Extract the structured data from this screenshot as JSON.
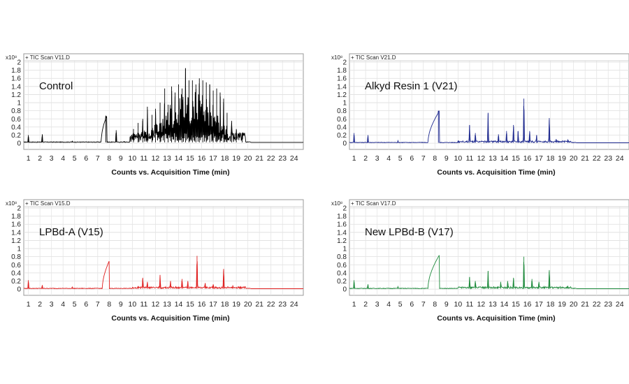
{
  "chart_data": [
    {
      "type": "line",
      "file_label": "+ TIC Scan V11.D",
      "exponent_label": "x10⁸",
      "sample_label": "Control",
      "xlabel": "Counts vs. Acquisition Time (min)",
      "color": "#000000",
      "xlim": [
        0.6,
        24.8
      ],
      "ylim": [
        -0.05,
        2.0
      ],
      "xticks": [
        "1",
        "2",
        "3",
        "4",
        "5",
        "6",
        "7",
        "8",
        "9",
        "10",
        "11",
        "12",
        "13",
        "14",
        "15",
        "16",
        "17",
        "18",
        "19",
        "20",
        "21",
        "22",
        "23",
        "24"
      ],
      "yticks": [
        "0",
        "0.2",
        "0.4",
        "0.6",
        "0.8",
        "1",
        "1.2",
        "1.4",
        "1.6",
        "1.8",
        "2"
      ],
      "grid": true,
      "peaks": [
        [
          1.0,
          0.2
        ],
        [
          2.2,
          0.22
        ],
        [
          4.8,
          0.05
        ],
        [
          7.7,
          0.68
        ],
        [
          8.6,
          0.32
        ],
        [
          9.3,
          0.05
        ],
        [
          10.1,
          0.35
        ],
        [
          10.5,
          0.5
        ],
        [
          10.9,
          0.6
        ],
        [
          11.3,
          0.9
        ],
        [
          11.7,
          0.7
        ],
        [
          12.0,
          0.85
        ],
        [
          12.4,
          1.0
        ],
        [
          12.8,
          1.35
        ],
        [
          13.1,
          0.95
        ],
        [
          13.4,
          1.4
        ],
        [
          13.7,
          1.25
        ],
        [
          14.0,
          1.45
        ],
        [
          14.3,
          1.35
        ],
        [
          14.6,
          1.85
        ],
        [
          14.9,
          1.55
        ],
        [
          15.2,
          1.55
        ],
        [
          15.5,
          1.45
        ],
        [
          15.8,
          1.6
        ],
        [
          16.1,
          1.55
        ],
        [
          16.4,
          1.5
        ],
        [
          16.7,
          1.45
        ],
        [
          17.0,
          1.3
        ],
        [
          17.3,
          1.35
        ],
        [
          17.6,
          1.25
        ],
        [
          17.9,
          1.1
        ],
        [
          18.2,
          0.75
        ],
        [
          18.6,
          0.55
        ],
        [
          19.0,
          0.35
        ],
        [
          19.5,
          0.25
        ]
      ],
      "baseline": 0.02
    },
    {
      "type": "line",
      "file_label": "+ TIC Scan V21.D",
      "exponent_label": "x10⁸",
      "sample_label": "Alkyd Resin 1 (V21)",
      "xlabel": "Counts vs. Acquisition Time (min)",
      "color": "#1f2a8f",
      "xlim": [
        0.6,
        24.8
      ],
      "ylim": [
        -0.05,
        2.0
      ],
      "xticks": [
        "1",
        "2",
        "3",
        "4",
        "5",
        "6",
        "7",
        "8",
        "9",
        "10",
        "11",
        "12",
        "13",
        "14",
        "15",
        "16",
        "17",
        "18",
        "19",
        "20",
        "21",
        "22",
        "23",
        "24"
      ],
      "yticks": [
        "0",
        "0.2",
        "0.4",
        "0.6",
        "0.8",
        "1",
        "1.2",
        "1.4",
        "1.6",
        "1.8",
        "2"
      ],
      "grid": true,
      "peaks": [
        [
          1.0,
          0.25
        ],
        [
          2.2,
          0.2
        ],
        [
          4.8,
          0.06
        ],
        [
          8.3,
          0.8
        ],
        [
          10.0,
          0.05
        ],
        [
          11.0,
          0.45
        ],
        [
          11.5,
          0.25
        ],
        [
          12.6,
          0.75
        ],
        [
          13.5,
          0.22
        ],
        [
          14.2,
          0.3
        ],
        [
          14.8,
          0.45
        ],
        [
          15.2,
          0.3
        ],
        [
          15.7,
          1.1
        ],
        [
          16.2,
          0.3
        ],
        [
          16.8,
          0.2
        ],
        [
          17.9,
          0.62
        ],
        [
          18.5,
          0.1
        ],
        [
          19.5,
          0.08
        ]
      ],
      "baseline": 0.01,
      "hump": [
        7.4,
        8.4,
        0.8
      ]
    },
    {
      "type": "line",
      "file_label": "+ TIC Scan V15.D",
      "exponent_label": "x10⁸",
      "sample_label": "LPBd-A (V15)",
      "xlabel": "Counts vs. Acquisition Time (min)",
      "color": "#e02020",
      "xlim": [
        0.6,
        24.8
      ],
      "ylim": [
        -0.05,
        2.0
      ],
      "xticks": [
        "1",
        "2",
        "3",
        "4",
        "5",
        "6",
        "7",
        "8",
        "9",
        "10",
        "11",
        "12",
        "13",
        "14",
        "15",
        "16",
        "17",
        "18",
        "19",
        "20",
        "21",
        "22",
        "23",
        "24"
      ],
      "yticks": [
        "0",
        "0.2",
        "0.4",
        "0.6",
        "0.8",
        "1",
        "1.2",
        "1.4",
        "1.6",
        "1.8",
        "2"
      ],
      "grid": true,
      "peaks": [
        [
          1.0,
          0.22
        ],
        [
          2.2,
          0.1
        ],
        [
          4.8,
          0.05
        ],
        [
          10.9,
          0.28
        ],
        [
          11.3,
          0.18
        ],
        [
          12.4,
          0.35
        ],
        [
          13.3,
          0.2
        ],
        [
          14.3,
          0.25
        ],
        [
          14.8,
          0.2
        ],
        [
          15.6,
          0.82
        ],
        [
          16.3,
          0.15
        ],
        [
          17.0,
          0.12
        ],
        [
          17.9,
          0.5
        ],
        [
          18.7,
          0.08
        ],
        [
          19.7,
          0.06
        ]
      ],
      "baseline": 0.01,
      "hump": [
        7.4,
        8.0,
        0.7
      ]
    },
    {
      "type": "line",
      "file_label": "+ TIC Scan V17.D",
      "exponent_label": "x10⁸",
      "sample_label": "New LPBd-B (V17)",
      "xlabel": "Counts vs. Acquisition Time (min)",
      "color": "#1e8a3c",
      "xlim": [
        0.6,
        24.8
      ],
      "ylim": [
        -0.05,
        2.0
      ],
      "xticks": [
        "1",
        "2",
        "3",
        "4",
        "5",
        "6",
        "7",
        "8",
        "9",
        "10",
        "11",
        "12",
        "13",
        "14",
        "15",
        "16",
        "17",
        "18",
        "19",
        "20",
        "21",
        "22",
        "23",
        "24"
      ],
      "yticks": [
        "0",
        "0.2",
        "0.4",
        "0.6",
        "0.8",
        "1",
        "1.2",
        "1.4",
        "1.6",
        "1.8",
        "2"
      ],
      "grid": true,
      "peaks": [
        [
          1.0,
          0.22
        ],
        [
          2.2,
          0.12
        ],
        [
          4.8,
          0.06
        ],
        [
          11.0,
          0.3
        ],
        [
          11.5,
          0.2
        ],
        [
          12.6,
          0.45
        ],
        [
          13.7,
          0.18
        ],
        [
          14.3,
          0.2
        ],
        [
          14.8,
          0.28
        ],
        [
          15.7,
          0.8
        ],
        [
          16.4,
          0.25
        ],
        [
          17.0,
          0.18
        ],
        [
          17.9,
          0.47
        ],
        [
          19.5,
          0.08
        ]
      ],
      "baseline": 0.01,
      "hump": [
        7.4,
        8.4,
        0.85
      ]
    }
  ]
}
